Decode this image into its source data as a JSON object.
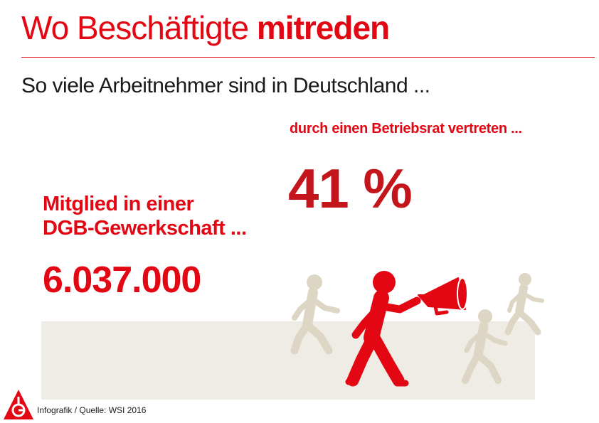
{
  "header": {
    "title_regular": "Wo Beschäftigte",
    "title_bold": "mitreden",
    "subtitle": "So viele Arbeitnehmer sind in Deutschland ..."
  },
  "stats": {
    "works_council": {
      "label": "durch einen Betriebsrat vertreten ...",
      "value": "41 %"
    },
    "union": {
      "label_line1": "Mitglied in einer",
      "label_line2": "DGB-Gewerkschaft ...",
      "value": "6.037.000"
    }
  },
  "footer": {
    "source": "Infografik / Quelle: WSI 2016",
    "logo_icon": "ig-metall-logo-icon"
  },
  "colors": {
    "accent": "#e30613",
    "accent_dark": "#c4151c",
    "figure_muted": "#ddd6c4",
    "ground": "#efece5"
  }
}
